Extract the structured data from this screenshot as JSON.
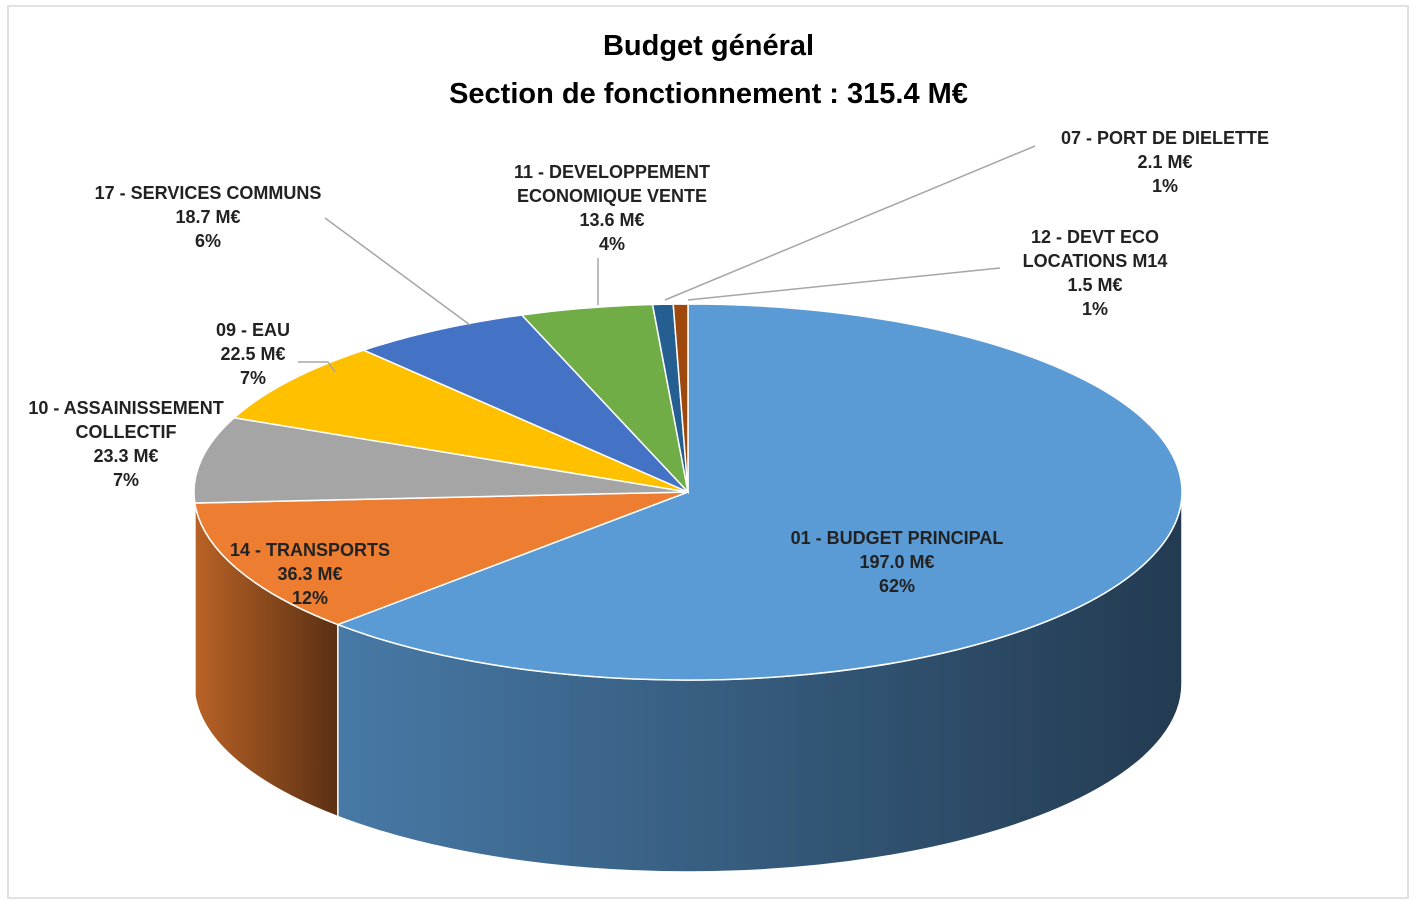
{
  "chart_data": {
    "type": "pie3d",
    "title": "Budget général",
    "subtitle": "Section de fonctionnement : 315.4 M€",
    "categories": [
      "01 - BUDGET PRINCIPAL",
      "14 - TRANSPORTS",
      "10 - ASSAINISSEMENT COLLECTIF",
      "09 - EAU",
      "17 - SERVICES COMMUNS",
      "11 - DEVELOPPEMENT ECONOMIQUE VENTE",
      "07 - PORT DE DIELETTE",
      "12 - DEVT ECO LOCATIONS M14"
    ],
    "values": [
      197.0,
      36.3,
      23.3,
      22.5,
      18.7,
      13.6,
      2.1,
      1.5
    ],
    "value_labels": [
      "197.0 M€",
      "36.3 M€",
      "23.3 M€",
      "22.5 M€",
      "18.7 M€",
      "13.6 M€",
      "2.1 M€",
      "1.5 M€"
    ],
    "percent_labels": [
      "62%",
      "12%",
      "7%",
      "7%",
      "6%",
      "4%",
      "1%",
      "1%"
    ],
    "colors": [
      "#5b9bd5",
      "#ed7d31",
      "#a5a5a5",
      "#ffc000",
      "#4472c4",
      "#70ad47",
      "#255e91",
      "#9e480e"
    ]
  }
}
